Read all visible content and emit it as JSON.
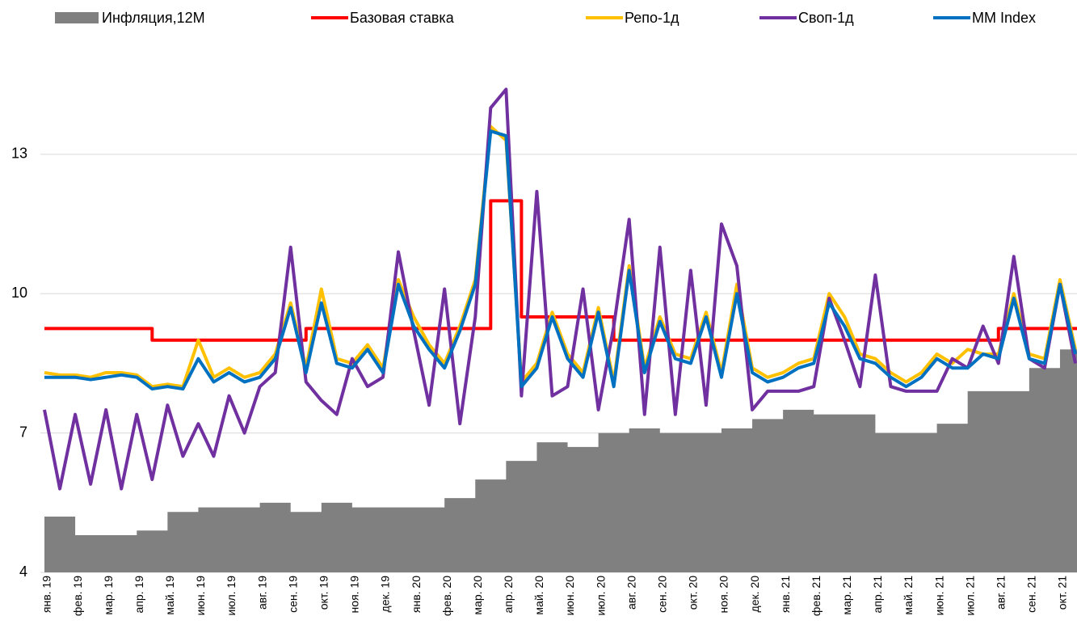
{
  "chart_data": {
    "type": "line",
    "categories": [
      "янв. 19",
      null,
      "фев. 19",
      null,
      "мар. 19",
      null,
      "апр. 19",
      null,
      "май. 19",
      null,
      "июн. 19",
      null,
      "июл. 19",
      null,
      "авг. 19",
      null,
      "сен. 19",
      null,
      "окт. 19",
      null,
      "ноя. 19",
      null,
      "дек. 19",
      null,
      "янв. 20",
      null,
      "фев. 20",
      null,
      "мар. 20",
      null,
      "апр. 20",
      null,
      "май. 20",
      null,
      "июн. 20",
      null,
      "июл. 20",
      null,
      "авг. 20",
      null,
      "сен. 20",
      null,
      "окт. 20",
      null,
      "ноя. 20",
      null,
      "дек. 20",
      null,
      "янв. 21",
      null,
      "фев. 21",
      null,
      "мар. 21",
      null,
      "апр. 21",
      null,
      "май. 21",
      null,
      "июн. 21",
      null,
      "июл. 21",
      null,
      "авг. 21",
      null,
      "сен. 21",
      null,
      "окт. 21",
      null
    ],
    "series": [
      {
        "name": "Инфляция,12М",
        "color": "#808080",
        "type": "area",
        "step": true,
        "values": [
          5.2,
          5.2,
          4.8,
          4.8,
          4.8,
          4.8,
          4.9,
          4.9,
          5.3,
          5.3,
          5.4,
          5.4,
          5.4,
          5.4,
          5.5,
          5.5,
          5.3,
          5.3,
          5.5,
          5.5,
          5.4,
          5.4,
          5.4,
          5.4,
          5.4,
          5.4,
          5.6,
          5.6,
          6.0,
          6.0,
          6.4,
          6.4,
          6.8,
          6.8,
          6.7,
          6.7,
          7.0,
          7.0,
          7.1,
          7.1,
          7.0,
          7.0,
          7.0,
          7.0,
          7.1,
          7.1,
          7.3,
          7.3,
          7.5,
          7.5,
          7.4,
          7.4,
          7.4,
          7.4,
          7.0,
          7.0,
          7.0,
          7.0,
          7.2,
          7.2,
          7.9,
          7.9,
          7.9,
          7.9,
          8.4,
          8.4,
          8.8,
          8.8
        ]
      },
      {
        "name": "Базовая ставка",
        "color": "#ff0000",
        "step": true,
        "values": [
          9.25,
          9.25,
          9.25,
          9.25,
          9.25,
          9.25,
          9.25,
          9,
          9,
          9,
          9,
          9,
          9,
          9,
          9,
          9,
          9,
          9.25,
          9.25,
          9.25,
          9.25,
          9.25,
          9.25,
          9.25,
          9.25,
          9.25,
          9.25,
          9.25,
          9.25,
          12,
          12,
          9.5,
          9.5,
          9.5,
          9.5,
          9.5,
          9.5,
          9,
          9,
          9,
          9,
          9,
          9,
          9,
          9,
          9,
          9,
          9,
          9,
          9,
          9,
          9,
          9,
          9,
          9,
          9,
          9,
          9,
          9,
          9,
          9,
          9,
          9.25,
          9.25,
          9.25,
          9.25,
          9.25,
          9.25
        ]
      },
      {
        "name": "Репо-1д",
        "color": "#ffc000",
        "values": [
          8.3,
          8.25,
          8.25,
          8.2,
          8.3,
          8.3,
          8.25,
          8.0,
          8.05,
          8.0,
          9.0,
          8.2,
          8.4,
          8.2,
          8.3,
          8.7,
          9.8,
          8.4,
          10.1,
          8.6,
          8.5,
          8.9,
          8.4,
          10.3,
          9.5,
          8.9,
          8.5,
          9.3,
          10.3,
          13.6,
          13.3,
          8.1,
          8.5,
          9.6,
          8.7,
          8.3,
          9.7,
          8.1,
          10.6,
          8.4,
          9.5,
          8.7,
          8.6,
          9.6,
          8.3,
          10.2,
          8.4,
          8.2,
          8.3,
          8.5,
          8.6,
          10.0,
          9.5,
          8.7,
          8.6,
          8.3,
          8.1,
          8.3,
          8.7,
          8.5,
          8.8,
          8.7,
          8.7,
          10.0,
          8.7,
          8.6,
          10.3,
          8.8
        ]
      },
      {
        "name": "Своп-1д",
        "color": "#7030a0",
        "values": [
          7.5,
          5.8,
          7.4,
          5.9,
          7.5,
          5.8,
          7.4,
          6.0,
          7.6,
          6.5,
          7.2,
          6.5,
          7.8,
          7.0,
          8.0,
          8.3,
          11.0,
          8.1,
          7.7,
          7.4,
          8.6,
          8.0,
          8.2,
          10.9,
          9.2,
          7.6,
          10.1,
          7.2,
          9.5,
          14.0,
          14.4,
          7.8,
          12.2,
          7.8,
          8.0,
          10.1,
          7.5,
          9.3,
          11.6,
          7.4,
          11.0,
          7.4,
          10.5,
          7.6,
          11.5,
          10.6,
          7.5,
          7.9,
          7.9,
          7.9,
          8.0,
          9.9,
          9.0,
          8.0,
          10.4,
          8.0,
          7.9,
          7.9,
          7.9,
          8.6,
          8.4,
          9.3,
          8.5,
          10.8,
          8.6,
          8.4,
          10.2,
          8.5
        ]
      },
      {
        "name": "MM Index",
        "color": "#0070c0",
        "values": [
          8.2,
          8.2,
          8.2,
          8.15,
          8.2,
          8.25,
          8.2,
          7.95,
          8.0,
          7.95,
          8.6,
          8.1,
          8.3,
          8.1,
          8.2,
          8.6,
          9.7,
          8.3,
          9.8,
          8.5,
          8.4,
          8.8,
          8.3,
          10.2,
          9.3,
          8.8,
          8.4,
          9.2,
          10.2,
          13.5,
          13.4,
          8.0,
          8.4,
          9.5,
          8.6,
          8.2,
          9.6,
          8.0,
          10.5,
          8.3,
          9.4,
          8.6,
          8.5,
          9.5,
          8.2,
          10.0,
          8.3,
          8.1,
          8.2,
          8.4,
          8.5,
          9.8,
          9.3,
          8.6,
          8.5,
          8.2,
          8.0,
          8.2,
          8.6,
          8.4,
          8.4,
          8.7,
          8.6,
          9.9,
          8.6,
          8.5,
          10.2,
          8.7
        ]
      }
    ],
    "ylim": [
      4,
      15
    ],
    "yticks": [
      4,
      7,
      10,
      13
    ],
    "grid": true,
    "legend": "top"
  }
}
